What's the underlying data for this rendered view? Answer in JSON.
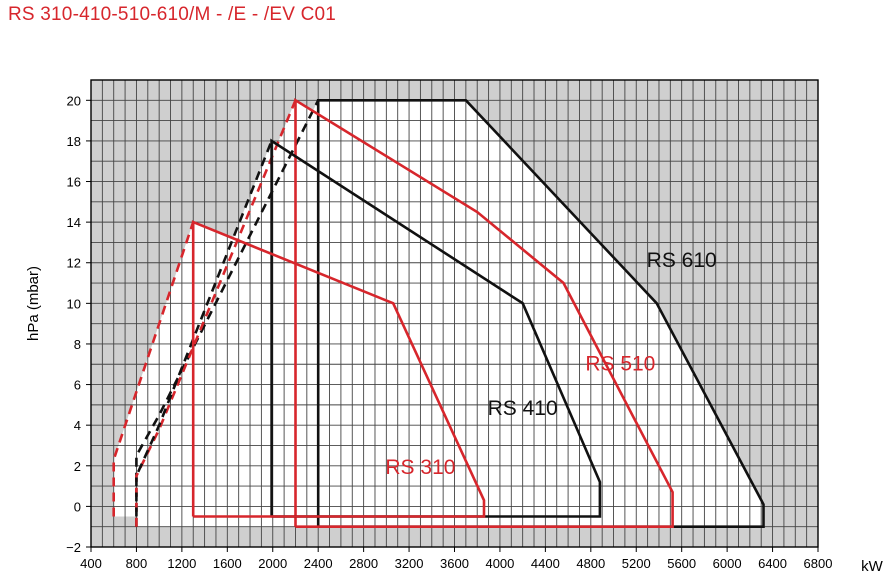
{
  "title": "RS 310-410-510-610/M - /E - /EV C01",
  "chart_data": {
    "type": "line",
    "title": "RS 310-410-510-610/M - /E - /EV C01",
    "xlabel": "kW",
    "ylabel": "hPa (mbar)",
    "xlim": [
      400,
      6800
    ],
    "ylim": [
      -2,
      21
    ],
    "x_ticks": [
      400,
      800,
      1200,
      1600,
      2000,
      2400,
      2800,
      3200,
      3600,
      4000,
      4400,
      4800,
      5200,
      5600,
      6000,
      6400,
      6800
    ],
    "y_ticks": [
      -2,
      0,
      2,
      4,
      6,
      8,
      10,
      12,
      14,
      16,
      18,
      20
    ],
    "x_tick_labels": [
      "400",
      "800",
      "1200",
      "1600",
      "2000",
      "2400",
      "2800",
      "3200",
      "3600",
      "4000",
      "4400",
      "4800",
      "5200",
      "5600",
      "6000",
      "6400",
      "6800"
    ],
    "y_tick_labels": [
      "−2",
      "0",
      "2",
      "4",
      "6",
      "8",
      "10",
      "12",
      "14",
      "16",
      "18",
      "20"
    ],
    "grid": true,
    "colors": {
      "red": "#d7262c",
      "black": "#111111",
      "grid": "#444444",
      "background": "#cfcfcf",
      "region": "#ffffff"
    },
    "series": [
      {
        "name": "RS 610",
        "color": "#111111",
        "points": [
          [
            2400,
            -1
          ],
          [
            2400,
            20
          ],
          [
            3700,
            20
          ],
          [
            5380,
            10
          ],
          [
            6320,
            0.1
          ],
          [
            6320,
            -1
          ],
          [
            2400,
            -1
          ]
        ],
        "dashed_points": [
          [
            800,
            -1
          ],
          [
            800,
            2.5
          ],
          [
            1000,
            4.5
          ],
          [
            2400,
            20
          ]
        ]
      },
      {
        "name": "RS 510",
        "color": "#d7262c",
        "points": [
          [
            2200,
            -1
          ],
          [
            2200,
            20
          ],
          [
            3800,
            14.5
          ],
          [
            4560,
            11
          ],
          [
            5520,
            0.7
          ],
          [
            5520,
            -1
          ],
          [
            2200,
            -1
          ]
        ],
        "dashed_points": [
          [
            800,
            -1
          ],
          [
            800,
            1.5
          ],
          [
            1000,
            3.8
          ],
          [
            2200,
            20
          ]
        ]
      },
      {
        "name": "RS 410",
        "color": "#111111",
        "points": [
          [
            1990,
            -0.5
          ],
          [
            1990,
            18
          ],
          [
            4200,
            10
          ],
          [
            4880,
            1.2
          ],
          [
            4880,
            -0.5
          ],
          [
            1990,
            -0.5
          ]
        ],
        "dashed_points": [
          [
            800,
            -0.5
          ],
          [
            800,
            1.5
          ],
          [
            1000,
            4.0
          ],
          [
            1990,
            18
          ]
        ]
      },
      {
        "name": "RS 310",
        "color": "#d7262c",
        "points": [
          [
            1300,
            -0.5
          ],
          [
            1300,
            14
          ],
          [
            3060,
            10
          ],
          [
            3860,
            0.3
          ],
          [
            3860,
            -0.5
          ],
          [
            1300,
            -0.5
          ]
        ],
        "dashed_points": [
          [
            600,
            -0.5
          ],
          [
            600,
            2.3
          ],
          [
            1300,
            14
          ]
        ]
      }
    ],
    "series_labels": [
      {
        "text": "RS 610",
        "x": 5600,
        "y": 11.8,
        "color": "#111111"
      },
      {
        "text": "RS 510",
        "x": 5060,
        "y": 6.7,
        "color": "#d7262c"
      },
      {
        "text": "RS 410",
        "x": 4200,
        "y": 4.5,
        "color": "#111111"
      },
      {
        "text": "RS 310",
        "x": 3300,
        "y": 1.6,
        "color": "#d7262c"
      }
    ]
  }
}
